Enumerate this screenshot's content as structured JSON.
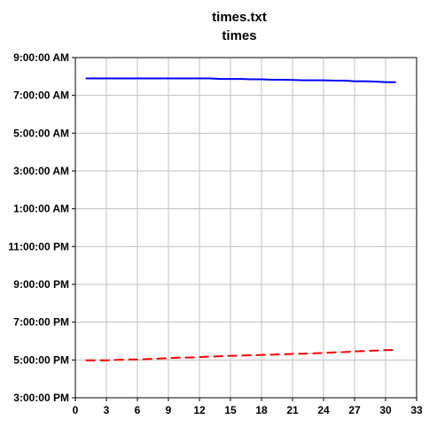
{
  "chart_data": {
    "type": "line",
    "title": "times.txt",
    "subtitle": "times",
    "xlabel": "",
    "ylabel": "",
    "xlim": [
      0,
      33
    ],
    "x_ticks": [
      "0",
      "3",
      "6",
      "9",
      "12",
      "15",
      "18",
      "21",
      "24",
      "27",
      "30",
      "33"
    ],
    "y_ticks": [
      "9:00:00 AM",
      "7:00:00 AM",
      "5:00:00 AM",
      "3:00:00 AM",
      "1:00:00 AM",
      "11:00:00 PM",
      "9:00:00 PM",
      "7:00:00 PM",
      "5:00:00 PM",
      "3:00:00 PM"
    ],
    "y_unit": "clock time, hours from 3:00:00 PM on the axis",
    "ylim": [
      0,
      18
    ],
    "grid": true,
    "legend": "none",
    "x": [
      1,
      2,
      3,
      4,
      5,
      6,
      7,
      8,
      9,
      10,
      11,
      12,
      13,
      14,
      15,
      16,
      17,
      18,
      19,
      20,
      21,
      22,
      23,
      24,
      25,
      26,
      27,
      28,
      29,
      30,
      31
    ],
    "series": [
      {
        "color": "#0000ff",
        "style": "solid",
        "values": [
          16.9,
          16.9,
          16.9,
          16.9,
          16.9,
          16.9,
          16.9,
          16.9,
          16.9,
          16.9,
          16.9,
          16.9,
          16.9,
          16.87,
          16.87,
          16.87,
          16.85,
          16.85,
          16.83,
          16.83,
          16.82,
          16.8,
          16.8,
          16.8,
          16.78,
          16.78,
          16.75,
          16.75,
          16.73,
          16.7,
          16.7
        ]
      },
      {
        "color": "#ff0000",
        "style": "dashed",
        "values": [
          1.98,
          1.98,
          1.98,
          2.0,
          2.02,
          2.03,
          2.05,
          2.07,
          2.1,
          2.12,
          2.13,
          2.15,
          2.18,
          2.2,
          2.22,
          2.23,
          2.25,
          2.27,
          2.28,
          2.3,
          2.32,
          2.33,
          2.35,
          2.37,
          2.4,
          2.42,
          2.45,
          2.47,
          2.5,
          2.52,
          2.53
        ]
      }
    ]
  }
}
